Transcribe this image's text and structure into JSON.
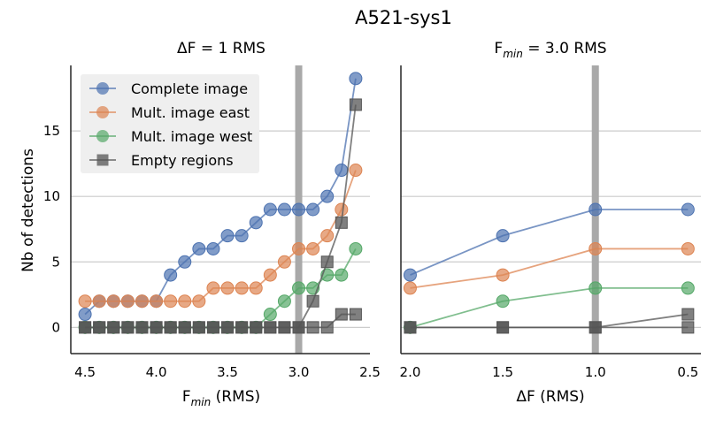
{
  "figure_title": "A521-sys1",
  "colors": {
    "complete": "#4c72b0",
    "east": "#dd8452",
    "west": "#55a868",
    "empty": "#555555",
    "vline": "#a9a9a9",
    "grid": "#cccccc",
    "axis": "#262626"
  },
  "chart_data": [
    {
      "type": "line",
      "title_main": "ΔF = 1 RMS",
      "xlabel_main": "F",
      "xlabel_sub": "min",
      "xlabel_suffix": " (RMS)",
      "ylabel": "Nb of detections",
      "xlim": [
        4.6,
        2.5
      ],
      "ylim": [
        -2,
        20
      ],
      "x_inverted": true,
      "grid": "horizontal",
      "vline_x": 3.0,
      "xticks": [
        4.5,
        4.0,
        3.5,
        3.0,
        2.5
      ],
      "xtick_labels": [
        "4.5",
        "4.0",
        "3.5",
        "3.0",
        "2.5"
      ],
      "yticks": [
        0,
        5,
        10,
        15
      ],
      "ytick_labels": [
        "0",
        "5",
        "10",
        "15"
      ],
      "legend_position": "top-left",
      "x": [
        4.5,
        4.4,
        4.3,
        4.2,
        4.1,
        4.0,
        3.9,
        3.8,
        3.7,
        3.6,
        3.5,
        3.4,
        3.3,
        3.2,
        3.1,
        3.0,
        2.9,
        2.8,
        2.7,
        2.6
      ],
      "series": [
        {
          "name": "Complete image",
          "marker": "circle",
          "color_key": "complete",
          "values": [
            1,
            2,
            2,
            2,
            2,
            2,
            4,
            5,
            6,
            6,
            7,
            7,
            8,
            9,
            9,
            9,
            9,
            10,
            12,
            19
          ]
        },
        {
          "name": "Mult. image east",
          "marker": "circle",
          "color_key": "east",
          "values": [
            2,
            2,
            2,
            2,
            2,
            2,
            2,
            2,
            2,
            3,
            3,
            3,
            3,
            4,
            5,
            6,
            6,
            7,
            9,
            12
          ]
        },
        {
          "name": "Mult. image west",
          "marker": "circle",
          "color_key": "west",
          "values": [
            0,
            0,
            0,
            0,
            0,
            0,
            0,
            0,
            0,
            0,
            0,
            0,
            0,
            1,
            2,
            3,
            3,
            4,
            4,
            6
          ]
        },
        {
          "name": "Empty regions",
          "marker": "square",
          "color_key": "empty",
          "values": [
            0,
            0,
            0,
            0,
            0,
            0,
            0,
            0,
            0,
            0,
            0,
            0,
            0,
            0,
            0,
            0,
            2,
            5,
            8,
            17
          ]
        },
        {
          "name": "",
          "marker": "square",
          "color_key": "empty",
          "values": [
            0,
            0,
            0,
            0,
            0,
            0,
            0,
            0,
            0,
            0,
            0,
            0,
            0,
            0,
            0,
            0,
            0,
            0,
            1,
            1
          ]
        }
      ]
    },
    {
      "type": "line",
      "title_main": "F",
      "title_sub": "min",
      "title_suffix": " = 3.0 RMS",
      "xlabel_main": "ΔF (RMS)",
      "xlim": [
        2.05,
        0.43
      ],
      "ylim": [
        -2,
        20
      ],
      "x_inverted": true,
      "grid": "horizontal",
      "vline_x": 1.0,
      "shared_y": true,
      "xticks": [
        2.0,
        1.5,
        1.0,
        0.5
      ],
      "xtick_labels": [
        "2.0",
        "1.5",
        "1.0",
        "0.5"
      ],
      "x": [
        2.0,
        1.5,
        1.0,
        0.5
      ],
      "series": [
        {
          "name": "Complete image",
          "marker": "circle",
          "color_key": "complete",
          "values": [
            4,
            7,
            9,
            9
          ]
        },
        {
          "name": "Mult. image east",
          "marker": "circle",
          "color_key": "east",
          "values": [
            3,
            4,
            6,
            6
          ]
        },
        {
          "name": "Mult. image west",
          "marker": "circle",
          "color_key": "west",
          "values": [
            0,
            2,
            3,
            3
          ]
        },
        {
          "name": "Empty regions",
          "marker": "square",
          "color_key": "empty",
          "values": [
            0,
            0,
            0,
            1
          ]
        },
        {
          "name": "",
          "marker": "square",
          "color_key": "empty",
          "values": [
            0,
            0,
            0,
            0
          ]
        }
      ]
    }
  ]
}
